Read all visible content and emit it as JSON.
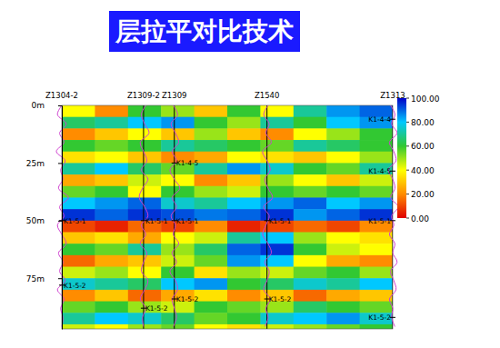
{
  "chart_data": {
    "type": "heatmap",
    "title": "层拉平对比技术",
    "xlim": [
      0,
      100
    ],
    "ylim": [
      0,
      97
    ],
    "yticks": [
      {
        "value": 0,
        "label": "0m"
      },
      {
        "value": 25,
        "label": "25m"
      },
      {
        "value": 50,
        "label": "50m"
      },
      {
        "value": 75,
        "label": "75m"
      }
    ],
    "tick_labels": "y",
    "x_bins": [
      0,
      10,
      20,
      30,
      40,
      50,
      60,
      70,
      80,
      90,
      100
    ],
    "y_bins": [
      0,
      5,
      10,
      15,
      20,
      25,
      30,
      35,
      40,
      45,
      50,
      55,
      60,
      65,
      70,
      75,
      80,
      85,
      90,
      95,
      100
    ],
    "cells": [
      [
        40,
        20,
        60,
        50,
        30,
        60,
        40,
        70,
        85,
        90
      ],
      [
        65,
        70,
        80,
        85,
        60,
        50,
        70,
        60,
        80,
        85
      ],
      [
        20,
        30,
        40,
        30,
        50,
        30,
        20,
        40,
        50,
        60
      ],
      [
        60,
        55,
        60,
        70,
        65,
        60,
        55,
        70,
        65,
        60
      ],
      [
        35,
        40,
        30,
        20,
        25,
        40,
        35,
        30,
        40,
        50
      ],
      [
        70,
        80,
        65,
        55,
        70,
        85,
        75,
        60,
        55,
        70
      ],
      [
        25,
        30,
        45,
        40,
        20,
        30,
        50,
        40,
        30,
        45
      ],
      [
        55,
        60,
        40,
        60,
        50,
        45,
        60,
        55,
        60,
        55
      ],
      [
        80,
        85,
        90,
        75,
        70,
        80,
        85,
        90,
        80,
        85
      ],
      [
        95,
        90,
        95,
        92,
        88,
        90,
        95,
        85,
        90,
        95
      ],
      [
        10,
        5,
        15,
        10,
        20,
        5,
        10,
        15,
        10,
        20
      ],
      [
        30,
        35,
        25,
        40,
        45,
        70,
        80,
        50,
        40,
        35
      ],
      [
        60,
        55,
        70,
        50,
        65,
        90,
        95,
        60,
        45,
        40
      ],
      [
        15,
        25,
        30,
        45,
        55,
        85,
        80,
        40,
        25,
        20
      ],
      [
        45,
        50,
        40,
        60,
        35,
        50,
        45,
        55,
        60,
        50
      ],
      [
        75,
        70,
        65,
        80,
        85,
        60,
        65,
        75,
        70,
        80
      ],
      [
        20,
        30,
        15,
        25,
        35,
        20,
        30,
        15,
        25,
        30
      ],
      [
        55,
        60,
        50,
        45,
        60,
        55,
        50,
        65,
        60,
        55
      ],
      [
        70,
        80,
        75,
        65,
        55,
        60,
        75,
        80,
        85,
        75
      ],
      [
        45,
        40,
        50,
        55,
        40,
        35,
        45,
        50,
        55,
        60
      ]
    ],
    "colorbar": {
      "range": [
        0,
        100
      ],
      "ticks": [
        {
          "value": 0,
          "label": "0.00"
        },
        {
          "value": 20,
          "label": "20.00"
        },
        {
          "value": 40,
          "label": "40.00"
        },
        {
          "value": 60,
          "label": "60.00"
        },
        {
          "value": 80,
          "label": "80.00"
        },
        {
          "value": 100,
          "label": "100.00"
        }
      ]
    },
    "curve_depths": [
      0,
      4,
      8,
      12,
      16,
      20,
      24,
      28,
      32,
      36,
      40,
      44,
      48,
      52,
      56,
      60,
      64,
      68,
      72,
      76,
      80,
      84,
      88,
      92,
      96
    ],
    "curve_range": [
      0,
      100
    ],
    "wells": [
      {
        "name": "Z1304-2",
        "x": 0,
        "picks": [
          {
            "label": "K1-5-1",
            "depth": 50
          },
          {
            "label": "K1-5-2",
            "depth": 78
          }
        ],
        "curve": [
          50,
          30,
          70,
          40,
          60,
          25,
          65,
          45,
          55,
          35,
          80,
          40,
          60,
          30,
          50,
          70,
          35,
          55,
          40,
          65,
          30,
          60,
          45,
          55,
          50
        ]
      },
      {
        "name": "Z1309-2",
        "x": 24.7,
        "picks": [
          {
            "label": "K1-5-1",
            "depth": 50
          },
          {
            "label": "K1-5-2",
            "depth": 88
          }
        ],
        "curve": [
          60,
          40,
          55,
          75,
          35,
          50,
          65,
          40,
          70,
          45,
          30,
          55,
          70,
          40,
          60,
          35,
          65,
          50,
          40,
          70,
          55,
          35,
          60,
          45,
          50
        ]
      },
      {
        "name": "Z1309",
        "x": 34,
        "picks": [
          {
            "label": "K1-4-5",
            "depth": 25
          },
          {
            "label": "K1-5-1",
            "depth": 50
          },
          {
            "label": "K1-5-2",
            "depth": 84
          }
        ],
        "curve": [
          45,
          65,
          35,
          55,
          70,
          40,
          60,
          30,
          50,
          75,
          40,
          60,
          35,
          55,
          45,
          70,
          40,
          60,
          30,
          55,
          65,
          40,
          50,
          60,
          45
        ]
      },
      {
        "name": "Z1540",
        "x": 62,
        "picks": [
          {
            "label": "K1-5-1",
            "depth": 50
          },
          {
            "label": "K1-5-2",
            "depth": 84
          }
        ],
        "curve": [
          55,
          35,
          60,
          45,
          70,
          30,
          50,
          65,
          40,
          55,
          75,
          35,
          60,
          45,
          30,
          55,
          70,
          40,
          60,
          50,
          35,
          65,
          45,
          55,
          40
        ]
      },
      {
        "name": "Z1313",
        "x": 100,
        "picks": [
          {
            "label": "K1-4-4",
            "depth": 6
          },
          {
            "label": "K1-4-5",
            "depth": 28.5
          },
          {
            "label": "K1-5-1",
            "depth": 50
          },
          {
            "label": "K1-5-2",
            "depth": 92
          }
        ],
        "curve": [
          40,
          60,
          45,
          70,
          35,
          55,
          65,
          30,
          50,
          60,
          40,
          75,
          45,
          55,
          35,
          60,
          50,
          70,
          40,
          55,
          65,
          35,
          50,
          45,
          60
        ]
      }
    ]
  }
}
